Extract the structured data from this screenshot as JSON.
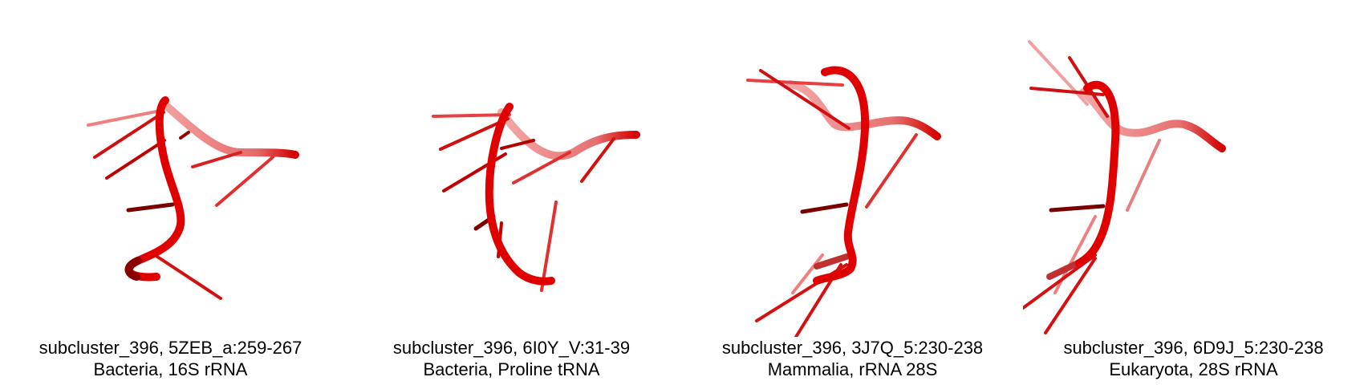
{
  "colors": {
    "backbone": "#e00000",
    "backbone_dark": "#7a0000",
    "background": "#ffffff"
  },
  "panels": [
    {
      "title": "subcluster_396, 5ZEB_a:259-267",
      "subtitle": "Bacteria, 16S rRNA"
    },
    {
      "title": "subcluster_396, 6I0Y_V:31-39",
      "subtitle": "Bacteria, Proline tRNA"
    },
    {
      "title": "subcluster_396, 3J7Q_5:230-238",
      "subtitle": "Mammalia, rRNA 28S"
    },
    {
      "title": "subcluster_396, 6D9J_5:230-238",
      "subtitle": "Eukaryota, 28S rRNA"
    }
  ]
}
